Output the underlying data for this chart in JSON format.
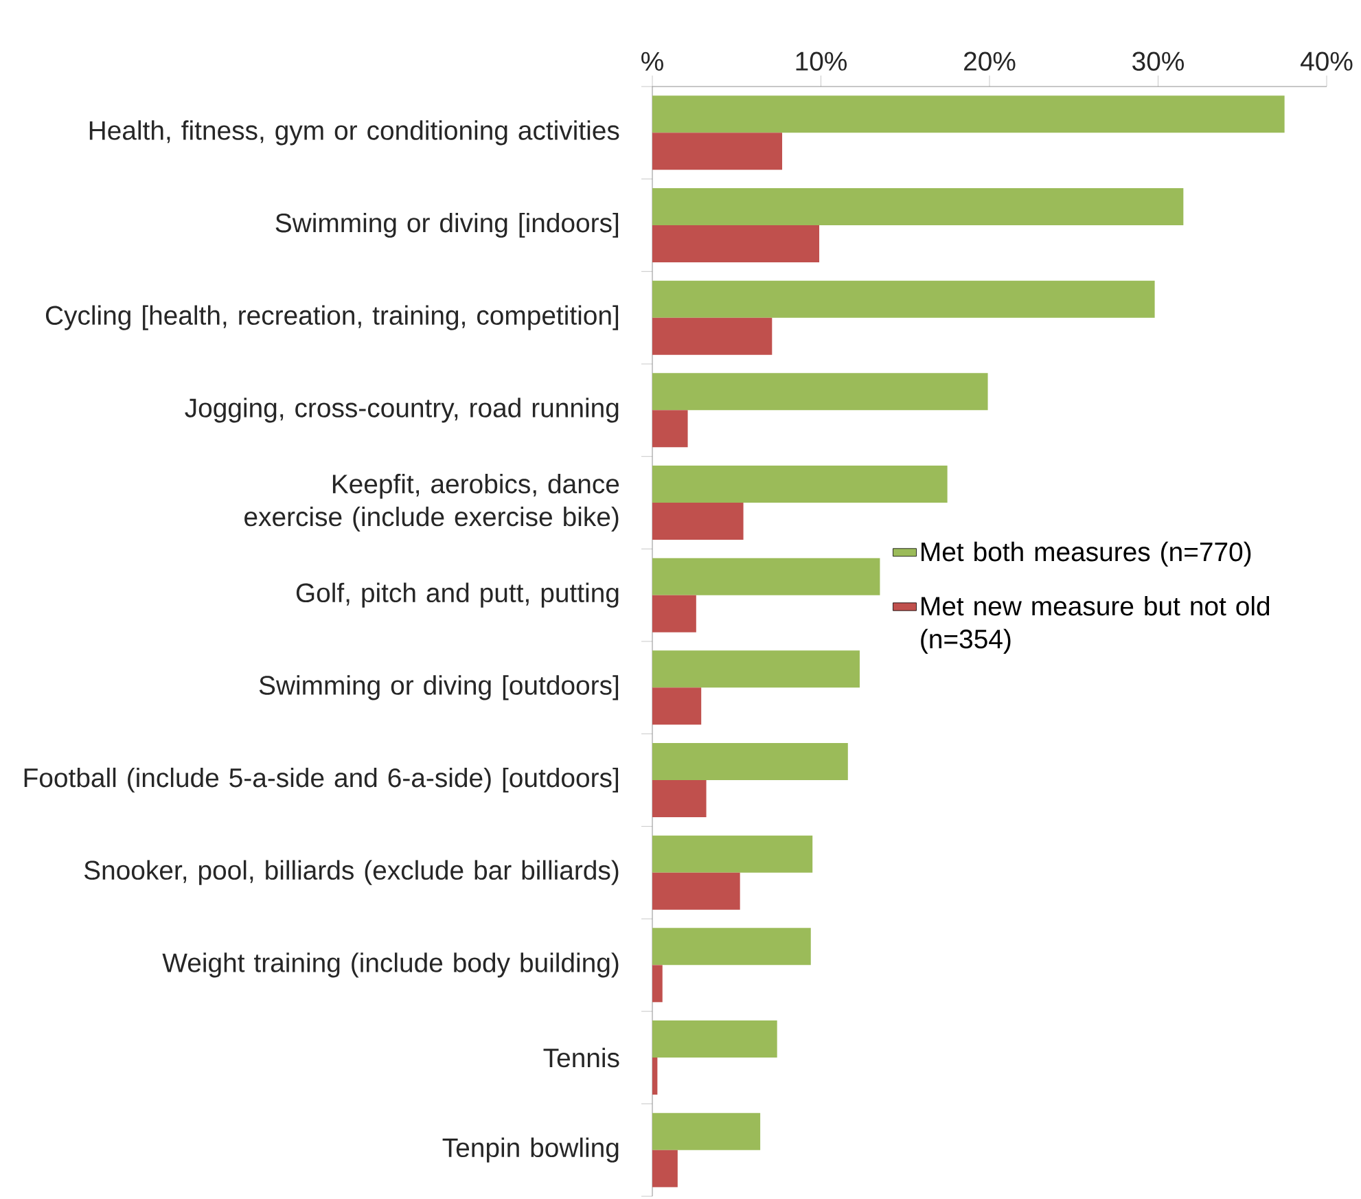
{
  "chart_data": {
    "type": "bar",
    "orientation": "horizontal",
    "legend": "right",
    "categories": [
      "Health, fitness, gym or conditioning activities",
      "Swimming or diving [indoors]",
      "Cycling [health, recreation, training, competition]",
      "Jogging, cross-country, road running",
      "Keepfit, aerobics, dance exercise (include exercise bike)",
      "Golf, pitch and putt, putting",
      "Swimming or diving [outdoors]",
      "Football (include 5-a-side and 6-a-side) [outdoors]",
      "Snooker, pool, billiards (exclude bar billiards)",
      "Weight training (include body building)",
      "Tennis",
      "Tenpin bowling"
    ],
    "xlim": [
      0,
      40
    ],
    "xticks": [
      {
        "value": 0,
        "label": "%"
      },
      {
        "value": 10,
        "label": "10%"
      },
      {
        "value": 20,
        "label": "20%"
      },
      {
        "value": 30,
        "label": "30%"
      },
      {
        "value": 40,
        "label": "40%"
      }
    ],
    "series": [
      {
        "name": "Met both measures (n=770)",
        "color": "#9bbb59",
        "values": [
          37.5,
          31.5,
          29.8,
          19.9,
          17.5,
          13.5,
          12.3,
          11.6,
          9.5,
          9.4,
          7.4,
          6.4
        ]
      },
      {
        "name": "Met new measure but not old (n=354)",
        "color": "#c0504d",
        "values": [
          7.7,
          9.9,
          7.1,
          2.1,
          5.4,
          2.6,
          2.9,
          3.2,
          5.2,
          0.6,
          0.3,
          1.5
        ]
      }
    ]
  }
}
